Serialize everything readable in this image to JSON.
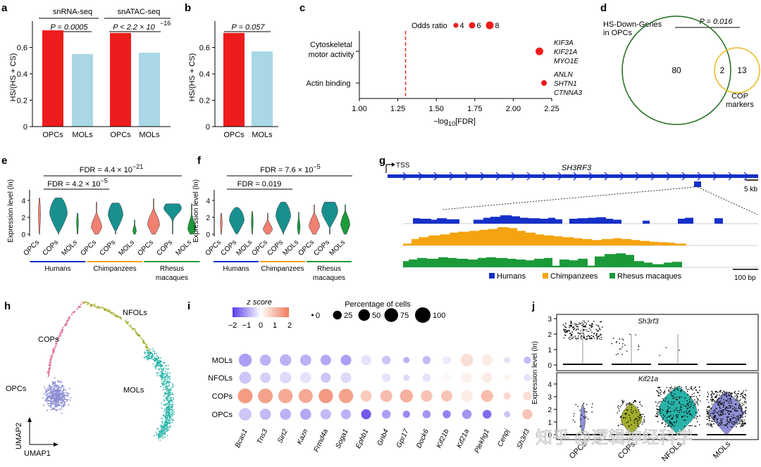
{
  "panel_labels": [
    "a",
    "b",
    "c",
    "d",
    "e",
    "f",
    "g",
    "h",
    "i",
    "j"
  ],
  "colors": {
    "red": "#ee1c1c",
    "lightblue": "#a9d7e6",
    "teal": "#18908f",
    "salmon": "#f08070",
    "human_blue": "#1530c8",
    "chimp_orange": "#f5a30f",
    "rhesus_green": "#1c9a3a",
    "umap_purple": "#8f8fd6",
    "umap_pink": "#e0708f",
    "umap_olive": "#a3ad2a",
    "umap_teal": "#28b2a8",
    "venn_green": "#1d6e1d",
    "venn_yellow": "#e8b820"
  },
  "chart_data": [
    {
      "id": "a",
      "type": "bar",
      "groups": [
        "snRNA-seq",
        "snATAC-seq"
      ],
      "categories": [
        "OPCs",
        "MOLs",
        "OPCs",
        "MOLs"
      ],
      "values": [
        0.73,
        0.55,
        0.71,
        0.56
      ],
      "ylabel": "HS/(HS + CS)",
      "ylim": [
        0,
        0.8
      ],
      "yticks": [
        "0",
        "0.2",
        "0.4",
        "0.6"
      ],
      "pvalues": [
        "P = 0.0005",
        "P < 2.2 × 10",
        "−16"
      ]
    },
    {
      "id": "b",
      "type": "bar",
      "categories": [
        "OPCs",
        "MOLs"
      ],
      "values": [
        0.71,
        0.57
      ],
      "ylabel": "HS/(HS + CS)",
      "ylim": [
        0,
        0.8
      ],
      "yticks": [
        "0",
        "0.2",
        "0.4",
        "0.6"
      ],
      "pvalue": "P = 0.057"
    },
    {
      "id": "c",
      "type": "scatter",
      "categories": [
        "Cytoskeletal motor activity",
        "Actin binding"
      ],
      "x": [
        2.17,
        2.2
      ],
      "odds": [
        8,
        5
      ],
      "xlabel": "−log10[FDR]",
      "xticks": [
        "1.00",
        "1.25",
        "1.50",
        "1.75",
        "2.00",
        "2.25"
      ],
      "threshold": 1.3,
      "legend_title": "Odds ratio",
      "legend_values": [
        "4",
        "6",
        "8"
      ],
      "genes": [
        [
          "KIF3A",
          "KIF21A",
          "MYO1E"
        ],
        [
          "ANLN",
          "SHTN1",
          "CTNNA3"
        ]
      ]
    },
    {
      "id": "d",
      "type": "venn",
      "sets": [
        "HS-Down-Genes in OPCs",
        "COP markers"
      ],
      "only_a": 80,
      "overlap": 2,
      "only_b": 13,
      "pvalue": "P = 0.016"
    },
    {
      "id": "e",
      "type": "violin",
      "ylabel": "Expression level (ln)",
      "yticks": [
        "0",
        "2",
        "4"
      ],
      "fdr_long": "FDR = 4.4 × 10",
      "fdr_long_exp": "−21",
      "fdr_short": "FDR = 4.2 × 10",
      "fdr_short_exp": "−5",
      "species": [
        "Humans",
        "Chimpanzees",
        "Rhesus macaques"
      ]
    },
    {
      "id": "f",
      "type": "violin",
      "ylabel": "Expression level (ln)",
      "yticks": [
        "0",
        "2",
        "4"
      ],
      "fdr_long": "FDR = 7.6 × 10",
      "fdr_long_exp": "−5",
      "fdr_short": "FDR = 0.019",
      "species": [
        "Humans",
        "Chimpanzees",
        "Rhesus macaques"
      ]
    },
    {
      "id": "g",
      "type": "area",
      "tss": "TSS",
      "gene": "SH3RF3",
      "scale1": "5 kb",
      "scale2": "100 bp",
      "legend": [
        "Humans",
        "Chimpanzees",
        "Rhesus macaques"
      ]
    },
    {
      "id": "h",
      "type": "scatter",
      "clusters": [
        "OPCs",
        "COPs",
        "NFOLs",
        "MOLs"
      ],
      "xlabel": "UMAP1",
      "ylabel": "UMAP2"
    },
    {
      "id": "i",
      "type": "heatmap",
      "rows": [
        "MOLs",
        "NFOLs",
        "COPs",
        "OPCs"
      ],
      "genes": [
        "Bcas1",
        "Tns3",
        "Sirt2",
        "Kazn",
        "Frmd4a",
        "Soga1",
        "Ephb1",
        "Gnb4",
        "Gpr17",
        "Dock6",
        "Kif21b",
        "Kif21a",
        "Plekhg1",
        "Cenpj",
        "Sh3rf3"
      ],
      "colorbar_title": "z score",
      "colorbar_ticks": [
        "−2",
        "−1",
        "0",
        "1",
        "2"
      ],
      "size_title": "Percentage of cells",
      "size_values": [
        "0",
        "25",
        "50",
        "75",
        "100"
      ],
      "z": [
        [
          -1.0,
          -0.8,
          -0.8,
          -0.8,
          -0.9,
          -1.0,
          -0.3,
          -0.6,
          -0.8,
          -0.7,
          -0.2,
          0.5,
          0.3,
          -0.3,
          -0.7
        ],
        [
          -0.6,
          -0.5,
          -0.4,
          -0.3,
          -0.6,
          -0.4,
          0.0,
          -0.3,
          -0.4,
          -0.3,
          0.1,
          0.2,
          0.3,
          0.2,
          -0.3
        ],
        [
          1.5,
          1.4,
          1.3,
          1.3,
          1.5,
          1.4,
          0.8,
          1.0,
          1.2,
          0.9,
          0.9,
          0.3,
          1.0,
          0.6,
          0.5
        ],
        [
          -0.6,
          -0.7,
          -0.8,
          -0.9,
          -0.7,
          -0.8,
          -1.7,
          -1.0,
          -1.2,
          -1.1,
          -1.3,
          -1.1,
          -1.5,
          -0.6,
          0.9
        ]
      ],
      "pct": [
        [
          65,
          45,
          50,
          45,
          40,
          40,
          35,
          25,
          10,
          20,
          20,
          60,
          45,
          10,
          15
        ],
        [
          55,
          40,
          50,
          45,
          35,
          40,
          30,
          25,
          10,
          20,
          25,
          45,
          35,
          10,
          15
        ],
        [
          90,
          90,
          85,
          80,
          85,
          85,
          45,
          55,
          65,
          50,
          45,
          50,
          55,
          15,
          25
        ],
        [
          60,
          45,
          45,
          45,
          40,
          35,
          35,
          25,
          15,
          20,
          20,
          30,
          25,
          10,
          35
        ]
      ]
    },
    {
      "id": "j",
      "type": "violin",
      "genes": [
        "Sh3rf3",
        "Kif21a"
      ],
      "categories": [
        "OPCs",
        "COPs",
        "NFOLs",
        "MOLs"
      ],
      "ylabel": "Expression level (ln)",
      "yticks_top": [
        "0",
        "1",
        "2",
        "3"
      ],
      "yticks_bottom": [
        "0",
        "1",
        "2",
        "3",
        "4"
      ]
    }
  ],
  "watermark": "知乎 @逻辑神经科学"
}
